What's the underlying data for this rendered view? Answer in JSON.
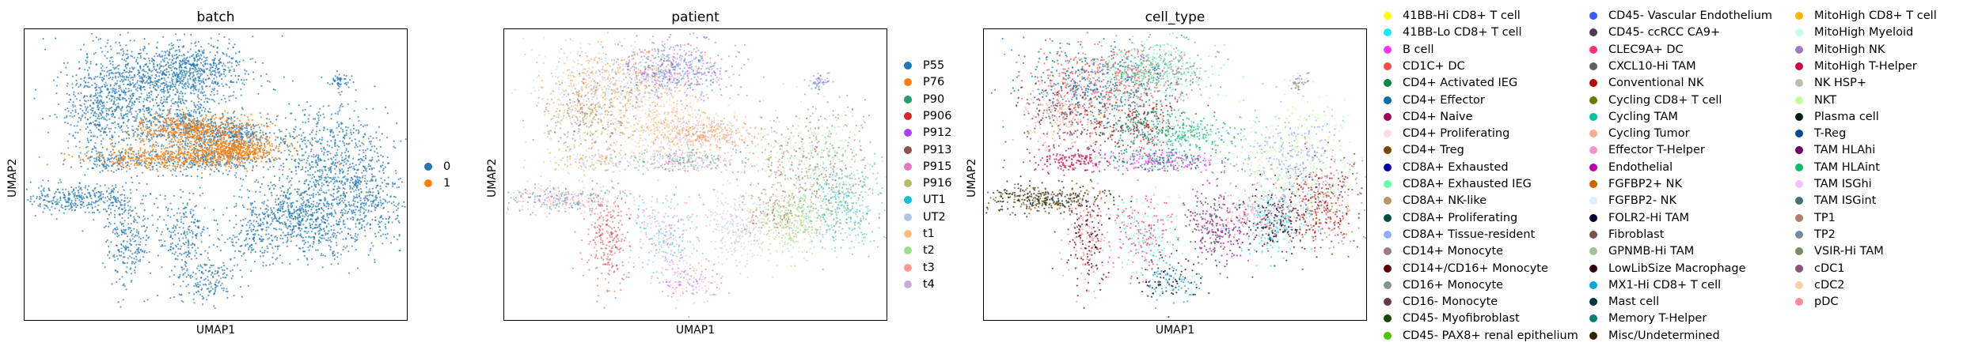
{
  "chart_data": [
    {
      "type": "scatter",
      "title": "batch",
      "xlabel": "UMAP1",
      "ylabel": "UMAP2",
      "legend": [
        {
          "label": "0",
          "color": "#1f77b4"
        },
        {
          "label": "1",
          "color": "#ff7f0e"
        }
      ]
    },
    {
      "type": "scatter",
      "title": "patient",
      "xlabel": "UMAP1",
      "ylabel": "UMAP2",
      "legend": [
        {
          "label": "P55",
          "color": "#1f77b4"
        },
        {
          "label": "P76",
          "color": "#ff7f0e"
        },
        {
          "label": "P90",
          "color": "#279e68"
        },
        {
          "label": "P906",
          "color": "#d62728"
        },
        {
          "label": "P912",
          "color": "#aa40fc"
        },
        {
          "label": "P913",
          "color": "#8c564b"
        },
        {
          "label": "P915",
          "color": "#e377c2"
        },
        {
          "label": "P916",
          "color": "#b5bd61"
        },
        {
          "label": "UT1",
          "color": "#17becf"
        },
        {
          "label": "UT2",
          "color": "#aec7e8"
        },
        {
          "label": "t1",
          "color": "#ffbb78"
        },
        {
          "label": "t2",
          "color": "#98df8a"
        },
        {
          "label": "t3",
          "color": "#ff9896"
        },
        {
          "label": "t4",
          "color": "#c5b0d5"
        }
      ]
    },
    {
      "type": "scatter",
      "title": "cell_type",
      "xlabel": "UMAP1",
      "ylabel": "UMAP2",
      "legend": [
        {
          "label": "41BB-Hi CD8+ T cell",
          "color": "#ffff00"
        },
        {
          "label": "41BB-Lo CD8+ T cell",
          "color": "#1ce6ff"
        },
        {
          "label": "B cell",
          "color": "#ff34ff"
        },
        {
          "label": "CD1C+ DC",
          "color": "#ff4a46"
        },
        {
          "label": "CD4+ Activated IEG",
          "color": "#008941"
        },
        {
          "label": "CD4+ Effector",
          "color": "#006fa6"
        },
        {
          "label": "CD4+ Naive",
          "color": "#a30059"
        },
        {
          "label": "CD4+ Proliferating",
          "color": "#ffdbe5"
        },
        {
          "label": "CD4+ Treg",
          "color": "#7a4900"
        },
        {
          "label": "CD8A+ Exhausted",
          "color": "#0000a6"
        },
        {
          "label": "CD8A+ Exhausted IEG",
          "color": "#63ffac"
        },
        {
          "label": "CD8A+ NK-like",
          "color": "#b79762"
        },
        {
          "label": "CD8A+ Proliferating",
          "color": "#004d43"
        },
        {
          "label": "CD8A+ Tissue-resident",
          "color": "#8fb0ff"
        },
        {
          "label": "CD14+ Monocyte",
          "color": "#997d87"
        },
        {
          "label": "CD14+/CD16+ Monocyte",
          "color": "#5a0007"
        },
        {
          "label": "CD16+ Monocyte",
          "color": "#809693"
        },
        {
          "label": "CD16- Monocyte",
          "color": "#6a3a4c"
        },
        {
          "label": "CD45- Myofibroblast",
          "color": "#1b4400"
        },
        {
          "label": "CD45- PAX8+ renal epithelium",
          "color": "#4fc601"
        },
        {
          "label": "CD45- Vascular Endothelium",
          "color": "#3b5dff"
        },
        {
          "label": "CD45- ccRCC CA9+",
          "color": "#4a3b53"
        },
        {
          "label": "CLEC9A+ DC",
          "color": "#ff2f80"
        },
        {
          "label": "CXCL10-Hi TAM",
          "color": "#61615a"
        },
        {
          "label": "Conventional NK",
          "color": "#ba0900"
        },
        {
          "label": "Cycling CD8+ T cell",
          "color": "#6b7900"
        },
        {
          "label": "Cycling TAM",
          "color": "#00c2a0"
        },
        {
          "label": "Cycling Tumor",
          "color": "#ffaa92"
        },
        {
          "label": "Effector T-Helper",
          "color": "#ff90c9"
        },
        {
          "label": "Endothelial",
          "color": "#b903aa"
        },
        {
          "label": "FGFBP2+ NK",
          "color": "#d16100"
        },
        {
          "label": "FGFBP2- NK",
          "color": "#ddefff"
        },
        {
          "label": "FOLR2-Hi TAM",
          "color": "#000035"
        },
        {
          "label": "Fibroblast",
          "color": "#7b4f4b"
        },
        {
          "label": "GPNMB-Hi TAM",
          "color": "#a1c299"
        },
        {
          "label": "LowLibSize Macrophage",
          "color": "#300018"
        },
        {
          "label": "MX1-Hi CD8+ T cell",
          "color": "#0aa6d8"
        },
        {
          "label": "Mast cell",
          "color": "#013349"
        },
        {
          "label": "Memory T-Helper",
          "color": "#00846f"
        },
        {
          "label": "Misc/Undetermined",
          "color": "#372101"
        },
        {
          "label": "MitoHigh CD8+ T cell",
          "color": "#ffb500"
        },
        {
          "label": "MitoHigh Myeloid",
          "color": "#c2ffed"
        },
        {
          "label": "MitoHigh NK",
          "color": "#a079bf"
        },
        {
          "label": "MitoHigh T-Helper",
          "color": "#cc0744"
        },
        {
          "label": "NK HSP+",
          "color": "#c0b9b2"
        },
        {
          "label": "NKT",
          "color": "#c2ff99"
        },
        {
          "label": "Plasma cell",
          "color": "#001e09"
        },
        {
          "label": "T-Reg",
          "color": "#00489c"
        },
        {
          "label": "TAM HLAhi",
          "color": "#6f0062"
        },
        {
          "label": "TAM HLAint",
          "color": "#0cbd66"
        },
        {
          "label": "TAM ISGhi",
          "color": "#eec3ff"
        },
        {
          "label": "TAM ISGint",
          "color": "#456d75"
        },
        {
          "label": "TP1",
          "color": "#b77b68"
        },
        {
          "label": "TP2",
          "color": "#7a87a1"
        },
        {
          "label": "VSIR-Hi TAM",
          "color": "#788d66"
        },
        {
          "label": "cDC1",
          "color": "#885578"
        },
        {
          "label": "cDC2",
          "color": "#fad09f"
        },
        {
          "label": "pDC",
          "color": "#ff8a9a"
        }
      ]
    }
  ]
}
